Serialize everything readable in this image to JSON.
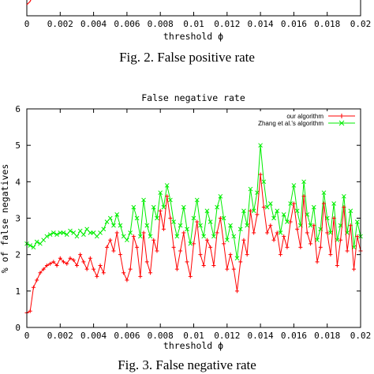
{
  "top_figure": {
    "xlabel": "threshold ϕ",
    "x_ticks": [
      "0",
      "0.002",
      "0.004",
      "0.006",
      "0.008",
      "0.01",
      "0.012",
      "0.014",
      "0.016",
      "0.018",
      "0.02"
    ],
    "caption": "Fig. 2.    False positive rate"
  },
  "chart_data": {
    "type": "line",
    "title": "False negative rate",
    "xlabel": "threshold ϕ",
    "ylabel": "% of false negatives",
    "xlim": [
      0,
      0.02
    ],
    "ylim": [
      0,
      6
    ],
    "x_ticks": [
      "0",
      "0.002",
      "0.004",
      "0.006",
      "0.008",
      "0.01",
      "0.012",
      "0.014",
      "0.016",
      "0.018",
      "0.02"
    ],
    "y_ticks": [
      "0",
      "1",
      "2",
      "3",
      "4",
      "5",
      "6"
    ],
    "grid": false,
    "legend_position": "top-right",
    "x": [
      0,
      0.0002,
      0.0004,
      0.0006,
      0.0008,
      0.001,
      0.0012,
      0.0014,
      0.0016,
      0.0018,
      0.002,
      0.0022,
      0.0024,
      0.0026,
      0.0028,
      0.003,
      0.0032,
      0.0034,
      0.0036,
      0.0038,
      0.004,
      0.0042,
      0.0044,
      0.0046,
      0.0048,
      0.005,
      0.0052,
      0.0054,
      0.0056,
      0.0058,
      0.006,
      0.0062,
      0.0064,
      0.0066,
      0.0068,
      0.007,
      0.0072,
      0.0074,
      0.0076,
      0.0078,
      0.008,
      0.0082,
      0.0084,
      0.0086,
      0.0088,
      0.009,
      0.0092,
      0.0094,
      0.0096,
      0.0098,
      0.01,
      0.0102,
      0.0104,
      0.0106,
      0.0108,
      0.011,
      0.0112,
      0.0114,
      0.0116,
      0.0118,
      0.012,
      0.0122,
      0.0124,
      0.0126,
      0.0128,
      0.013,
      0.0132,
      0.0134,
      0.0136,
      0.0138,
      0.014,
      0.0142,
      0.0144,
      0.0146,
      0.0148,
      0.015,
      0.0152,
      0.0154,
      0.0156,
      0.0158,
      0.016,
      0.0162,
      0.0164,
      0.0166,
      0.0168,
      0.017,
      0.0172,
      0.0174,
      0.0176,
      0.0178,
      0.018,
      0.0182,
      0.0184,
      0.0186,
      0.0188,
      0.019,
      0.0192,
      0.0194,
      0.0196,
      0.0198,
      0.02
    ],
    "series": [
      {
        "name": "our algorithm",
        "color": "#ff0000",
        "marker": "plus",
        "values": [
          0.4,
          0.45,
          1.1,
          1.3,
          1.5,
          1.6,
          1.7,
          1.75,
          1.8,
          1.7,
          1.9,
          1.8,
          1.75,
          1.9,
          1.85,
          1.7,
          2.0,
          1.8,
          1.6,
          1.9,
          1.6,
          1.4,
          1.7,
          1.5,
          2.2,
          2.4,
          2.1,
          2.6,
          2.0,
          1.5,
          1.3,
          1.6,
          2.5,
          2.2,
          1.4,
          2.6,
          1.8,
          1.5,
          2.4,
          2.1,
          3.2,
          2.7,
          3.6,
          3.0,
          2.2,
          1.6,
          2.1,
          2.6,
          1.8,
          1.4,
          2.3,
          2.9,
          2.0,
          1.7,
          2.4,
          2.2,
          1.7,
          2.6,
          3.0,
          2.3,
          1.6,
          2.0,
          1.6,
          1.0,
          1.8,
          2.4,
          2.0,
          3.2,
          2.6,
          3.1,
          4.2,
          3.3,
          2.6,
          2.8,
          2.4,
          2.6,
          2.0,
          2.5,
          2.2,
          2.9,
          3.4,
          2.7,
          2.2,
          3.6,
          2.6,
          2.3,
          2.8,
          1.8,
          2.2,
          3.4,
          2.6,
          2.0,
          3.0,
          1.7,
          2.4,
          3.3,
          2.1,
          2.8,
          1.6,
          2.5,
          2.1
        ]
      },
      {
        "name": "Zhang et al.'s algorithm",
        "color": "#00ee00",
        "marker": "cross",
        "values": [
          2.3,
          2.25,
          2.2,
          2.35,
          2.3,
          2.4,
          2.5,
          2.55,
          2.6,
          2.55,
          2.6,
          2.6,
          2.55,
          2.65,
          2.6,
          2.5,
          2.65,
          2.55,
          2.7,
          2.6,
          2.6,
          2.5,
          2.6,
          2.7,
          2.9,
          3.0,
          2.8,
          3.1,
          2.8,
          2.5,
          2.4,
          2.6,
          3.3,
          3.0,
          2.5,
          3.5,
          2.8,
          2.5,
          3.3,
          3.0,
          3.7,
          3.3,
          3.9,
          3.5,
          2.9,
          2.5,
          2.8,
          3.3,
          2.7,
          2.3,
          3.0,
          3.5,
          2.8,
          2.5,
          3.2,
          2.9,
          2.5,
          3.3,
          3.6,
          3.0,
          2.4,
          2.8,
          2.5,
          1.9,
          2.7,
          3.2,
          2.8,
          3.8,
          3.2,
          3.7,
          5.0,
          4.0,
          3.3,
          3.4,
          3.0,
          3.2,
          2.6,
          3.1,
          2.9,
          3.4,
          3.9,
          3.2,
          2.8,
          4.0,
          3.1,
          2.8,
          3.3,
          2.4,
          2.7,
          3.7,
          3.0,
          2.6,
          3.4,
          2.4,
          2.8,
          3.6,
          2.6,
          3.2,
          2.2,
          2.9,
          2.5
        ]
      }
    ]
  },
  "bottom_figure": {
    "caption": "Fig. 3.    False negative rate"
  }
}
